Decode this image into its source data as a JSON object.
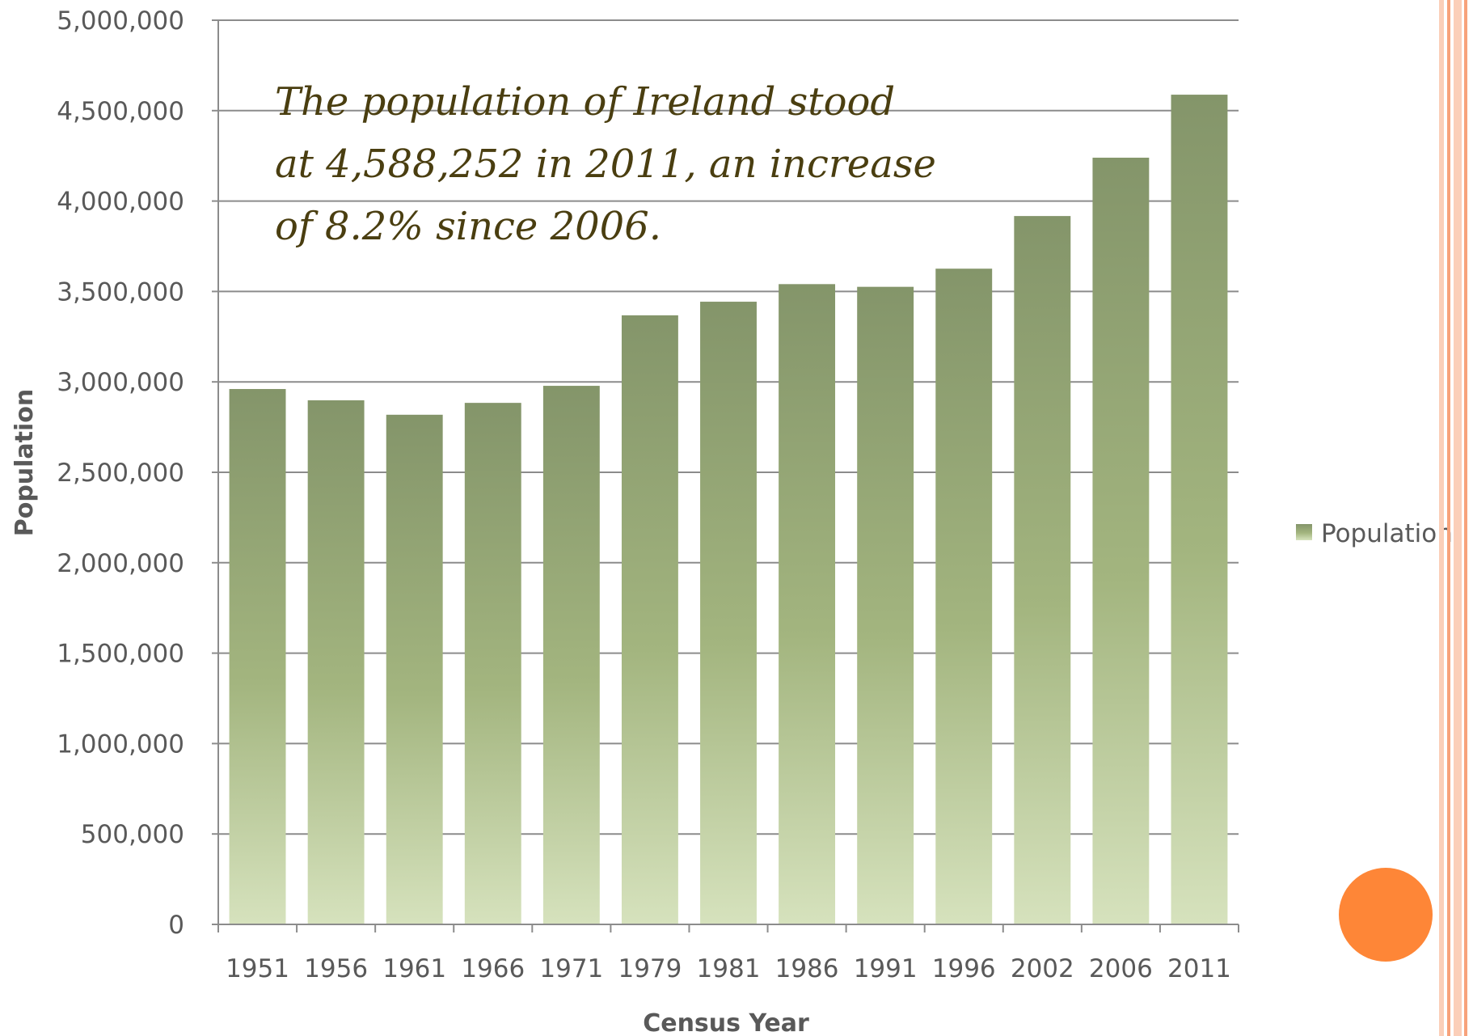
{
  "annotation": "The population of Ireland stood at 4,588,252 in 2011, an increase of 8.2% since 2006.",
  "colors": {
    "bar_top": "#84956a",
    "bar_bottom": "#d6e2bd",
    "gridline": "#8c8c8c",
    "text": "#595959",
    "annotation_text": "#4a3e10",
    "accent_circle": "#fe8637",
    "stripe_light": "#fbcfb9",
    "stripe_mid": "#f7a27b"
  },
  "chart_data": {
    "type": "bar",
    "title": "",
    "xlabel": "Census Year",
    "ylabel": "Population",
    "categories": [
      "1951",
      "1956",
      "1961",
      "1966",
      "1971",
      "1979",
      "1981",
      "1986",
      "1991",
      "1996",
      "2002",
      "2006",
      "2011"
    ],
    "series": [
      {
        "name": "Population",
        "values": [
          2960593,
          2898264,
          2818341,
          2884002,
          2978248,
          3368217,
          3443405,
          3540643,
          3525719,
          3626087,
          3917203,
          4239848,
          4588252
        ]
      }
    ],
    "ylim": [
      0,
      5000000
    ],
    "yticks": [
      "0",
      "500,000",
      "1,000,000",
      "1,500,000",
      "2,000,000",
      "2,500,000",
      "3,000,000",
      "3,500,000",
      "4,000,000",
      "4,500,000",
      "5,000,000"
    ],
    "ytick_values": [
      0,
      500000,
      1000000,
      1500000,
      2000000,
      2500000,
      3000000,
      3500000,
      4000000,
      4500000,
      5000000
    ],
    "grid": true,
    "legend_position": "right"
  }
}
